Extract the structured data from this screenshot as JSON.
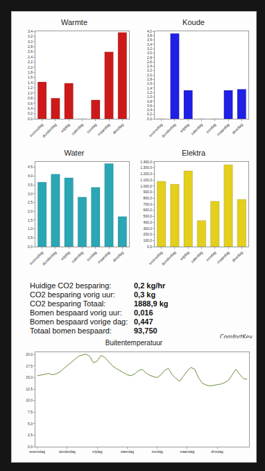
{
  "chart_data": [
    {
      "type": "bar",
      "title": "Warmte",
      "categories": [
        "woensdag",
        "donderdag",
        "vrijdag",
        "zaterdag",
        "zondag",
        "maandag",
        "dinsdag"
      ],
      "values": [
        1.43,
        0.8,
        1.38,
        0,
        0.73,
        2.6,
        3.35
      ],
      "color": "#cc1a1a",
      "ylim": [
        0,
        3.4
      ],
      "yticks": [
        {
          "value": 0,
          "label": "0,0"
        },
        {
          "value": 0.2,
          "label": "0,2"
        },
        {
          "value": 0.4,
          "label": "0,4"
        },
        {
          "value": 0.6,
          "label": "0,6"
        },
        {
          "value": 0.8,
          "label": "0,8"
        },
        {
          "value": 1,
          "label": "1,0"
        },
        {
          "value": 1.2,
          "label": "1,2"
        },
        {
          "value": 1.4,
          "label": "1,4"
        },
        {
          "value": 1.6,
          "label": "1,6"
        },
        {
          "value": 1.8,
          "label": "1,8"
        },
        {
          "value": 2,
          "label": "2,0"
        },
        {
          "value": 2.2,
          "label": "2,2"
        },
        {
          "value": 2.4,
          "label": "2,4"
        },
        {
          "value": 2.6,
          "label": "2,6"
        },
        {
          "value": 2.8,
          "label": "2,8"
        },
        {
          "value": 3,
          "label": "3,0"
        },
        {
          "value": 3.2,
          "label": "3,2"
        },
        {
          "value": 3.4,
          "label": "3,4"
        }
      ],
      "grid": false
    },
    {
      "type": "bar",
      "title": "Koude",
      "categories": [
        "woensdag",
        "donderdag",
        "vrijdag",
        "zaterdag",
        "zondag",
        "maandag",
        "dinsdag"
      ],
      "values": [
        0,
        3.9,
        1.3,
        0,
        0,
        1.3,
        1.35
      ],
      "color": "#1f1fe6",
      "ylim": [
        0,
        4
      ],
      "yticks": [
        {
          "value": 0,
          "label": "0,0"
        },
        {
          "value": 0.2,
          "label": "0,2"
        },
        {
          "value": 0.4,
          "label": "0,4"
        },
        {
          "value": 0.6,
          "label": "0,6"
        },
        {
          "value": 0.8,
          "label": "0,8"
        },
        {
          "value": 1,
          "label": "1,0"
        },
        {
          "value": 1.2,
          "label": "1,2"
        },
        {
          "value": 1.4,
          "label": "1,4"
        },
        {
          "value": 1.6,
          "label": "1,6"
        },
        {
          "value": 1.8,
          "label": "1,8"
        },
        {
          "value": 2,
          "label": "2,0"
        },
        {
          "value": 2.2,
          "label": "2,2"
        },
        {
          "value": 2.4,
          "label": "2,4"
        },
        {
          "value": 2.6,
          "label": "2,6"
        },
        {
          "value": 2.8,
          "label": "2,8"
        },
        {
          "value": 3,
          "label": "3,0"
        },
        {
          "value": 3.2,
          "label": "3,2"
        },
        {
          "value": 3.4,
          "label": "3,4"
        },
        {
          "value": 3.6,
          "label": "3,6"
        },
        {
          "value": 3.8,
          "label": "3,8"
        },
        {
          "value": 4,
          "label": "4,0"
        }
      ],
      "grid": false
    },
    {
      "type": "bar",
      "title": "Water",
      "categories": [
        "woensdag",
        "donderdag",
        "vrijdag",
        "zaterdag",
        "zondag",
        "maandag",
        "dinsdag"
      ],
      "values": [
        3.65,
        4.1,
        3.9,
        2.8,
        3.35,
        4.7,
        1.7
      ],
      "color": "#2aa6b5",
      "ylim": [
        0,
        4.8
      ],
      "yticks": [
        {
          "value": 0,
          "label": "0,0"
        },
        {
          "value": 0.5,
          "label": "0,5"
        },
        {
          "value": 1,
          "label": "1,0"
        },
        {
          "value": 1.5,
          "label": "1,5"
        },
        {
          "value": 2,
          "label": "2,0"
        },
        {
          "value": 2.5,
          "label": "2,5"
        },
        {
          "value": 3,
          "label": "3,0"
        },
        {
          "value": 3.5,
          "label": "3,5"
        },
        {
          "value": 4,
          "label": "4,0"
        },
        {
          "value": 4.5,
          "label": "4,5"
        }
      ],
      "grid": false
    },
    {
      "type": "bar",
      "title": "Elektra",
      "categories": [
        "woensdag",
        "donderdag",
        "vrijdag",
        "zaterdag",
        "zondag",
        "maandag",
        "dinsdag"
      ],
      "values": [
        1080,
        1030,
        1250,
        430,
        750,
        1350,
        780
      ],
      "color": "#e3cf1c",
      "ylim": [
        0,
        1400
      ],
      "yticks": [
        {
          "value": 0,
          "label": "0,0"
        },
        {
          "value": 100,
          "label": "100,0"
        },
        {
          "value": 200,
          "label": "200,0"
        },
        {
          "value": 300,
          "label": "300,0"
        },
        {
          "value": 400,
          "label": "400,0"
        },
        {
          "value": 500,
          "label": "500,0"
        },
        {
          "value": 600,
          "label": "600,0"
        },
        {
          "value": 700,
          "label": "700,0"
        },
        {
          "value": 800,
          "label": "800,0"
        },
        {
          "value": 900,
          "label": "900,0"
        },
        {
          "value": 1000,
          "label": "1.000,0"
        },
        {
          "value": 1100,
          "label": "1.100,0"
        },
        {
          "value": 1200,
          "label": "1.200,0"
        },
        {
          "value": 1300,
          "label": "1.300,0"
        },
        {
          "value": 1400,
          "label": "1.400,0"
        }
      ],
      "grid": false
    },
    {
      "type": "line",
      "title": "Buitentemperatuur",
      "categories": [
        "woensdag",
        null,
        null,
        null,
        null,
        null,
        null,
        null,
        "donderdag",
        null,
        null,
        null,
        null,
        null,
        null,
        null,
        "vrijdag",
        null,
        null,
        null,
        null,
        null,
        null,
        null,
        "zaterdag",
        null,
        null,
        null,
        null,
        null,
        null,
        null,
        "zondag",
        null,
        null,
        null,
        null,
        null,
        null,
        null,
        "maandag",
        null,
        null,
        null,
        null,
        null,
        null,
        null,
        "dinsdag",
        null,
        null,
        null,
        null,
        null,
        null,
        null,
        null
      ],
      "values": [
        15.4,
        15.5,
        15.7,
        15.9,
        15.6,
        15.8,
        16.2,
        16.9,
        17.6,
        18.3,
        19.0,
        19.6,
        19.9,
        20.1,
        19.6,
        18.2,
        18.6,
        19.8,
        19.4,
        18.5,
        17.6,
        17.0,
        16.5,
        16.0,
        15.6,
        15.4,
        15.8,
        16.5,
        16.8,
        16.0,
        15.5,
        15.2,
        15.0,
        15.6,
        16.6,
        17.0,
        15.6,
        14.8,
        14.2,
        15.3,
        16.4,
        17.2,
        16.8,
        15.0,
        13.8,
        13.4,
        13.2,
        13.3,
        13.4,
        13.6,
        13.9,
        14.4,
        15.6,
        16.8,
        15.7,
        14.8,
        14.6
      ],
      "color": "#6b8c3c",
      "ylim": [
        0,
        20.5
      ],
      "yticks": [
        {
          "value": 0,
          "label": "0,0"
        },
        {
          "value": 2.5,
          "label": "2,5"
        },
        {
          "value": 5,
          "label": "5,0"
        },
        {
          "value": 7.5,
          "label": "7,5"
        },
        {
          "value": 10,
          "label": "10,0"
        },
        {
          "value": 12.5,
          "label": "12,5"
        },
        {
          "value": 15,
          "label": "15,0"
        },
        {
          "value": 17.5,
          "label": "17,5"
        },
        {
          "value": 20,
          "label": "20,0"
        }
      ],
      "grid": false
    }
  ],
  "stats": [
    {
      "label": "Huidige CO2 besparing:",
      "value": "0,2 kg/hr"
    },
    {
      "label": "CO2 besparing vorig uur:",
      "value": "0,3 kg"
    },
    {
      "label": "CO2 besparing Totaal:",
      "value": "1888,9 kg"
    },
    {
      "label": "Bomen bespaard vorig uur:",
      "value": "0,016"
    },
    {
      "label": "Bomen bespaard vorige dag:",
      "value": "0,447"
    },
    {
      "label": "Totaal bomen bespaard:",
      "value": "93,750"
    }
  ],
  "logo": "ComfortKey"
}
